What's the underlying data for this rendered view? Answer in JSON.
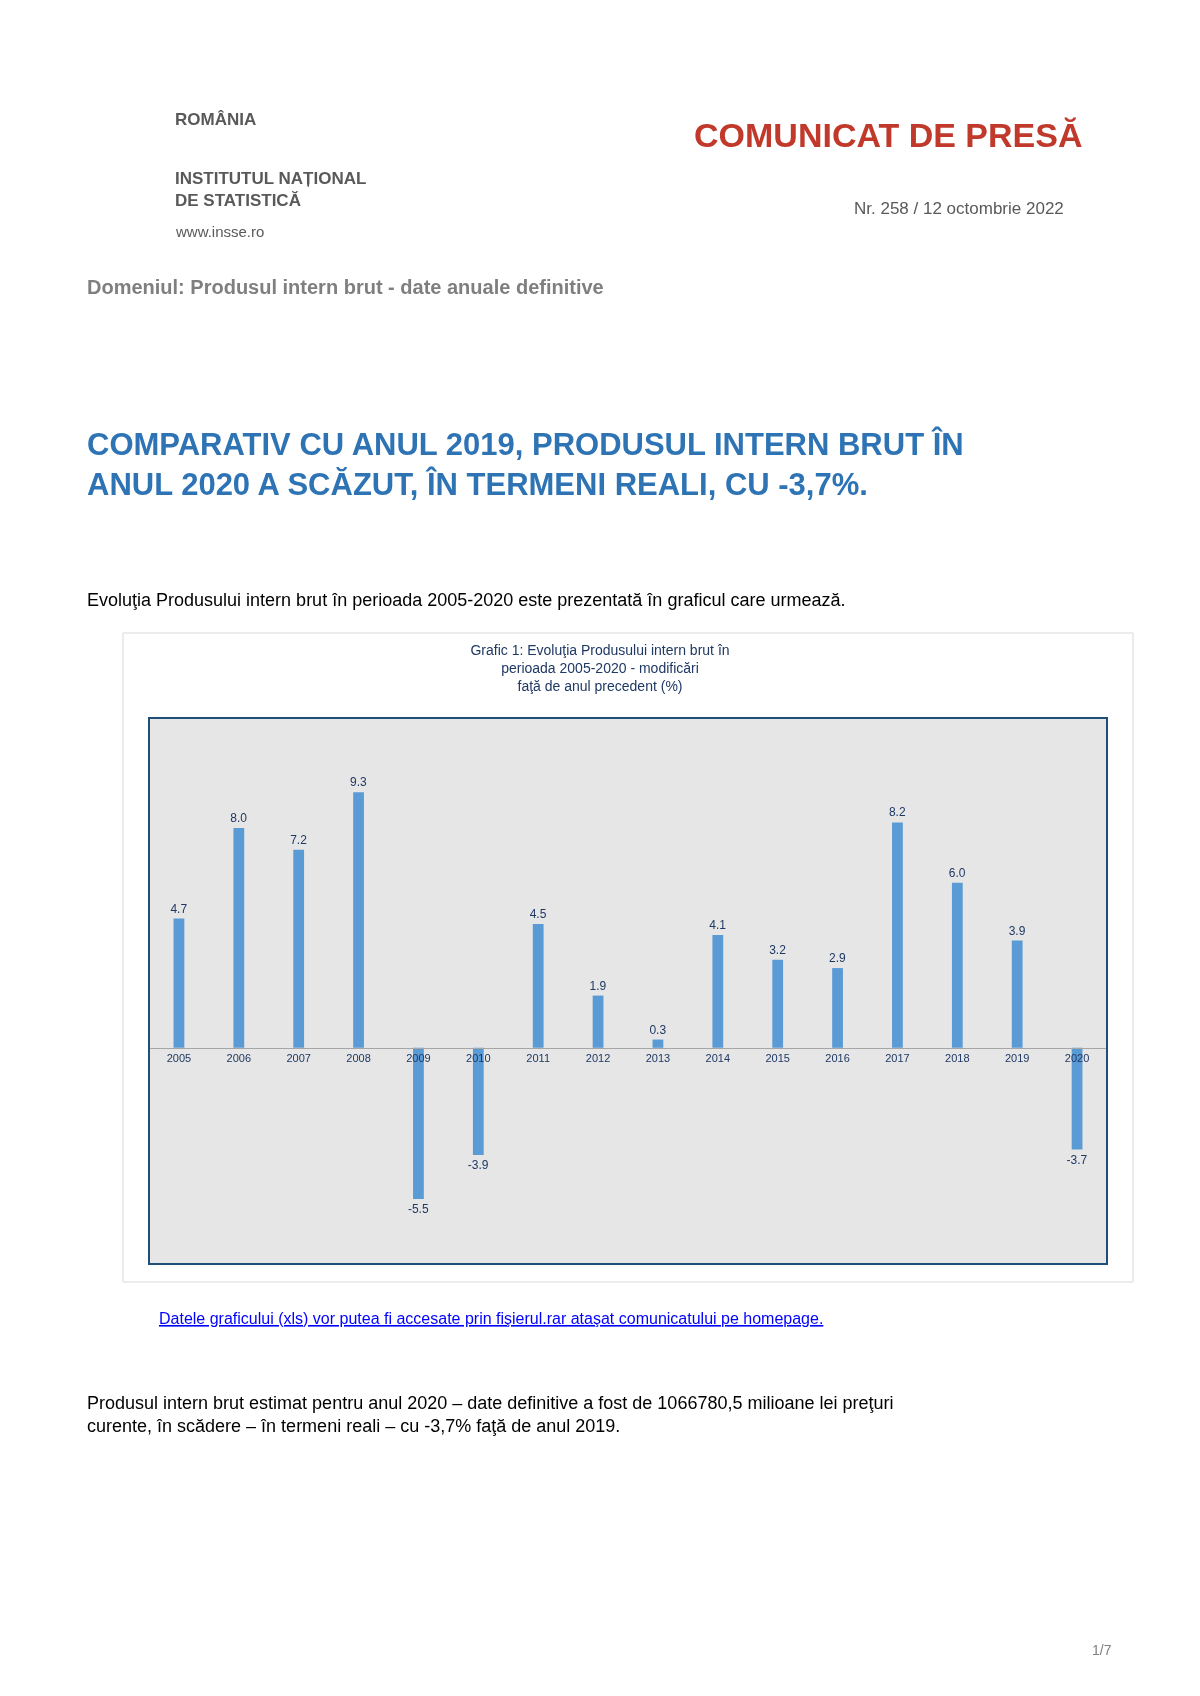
{
  "chart_data": {
    "type": "bar",
    "title": "Grafic 1: Evoluţia Produsului intern brut în\nperioada 2005-2020 - modificări\nfaţă de anul precedent (%)",
    "categories": [
      "2005",
      "2006",
      "2007",
      "2008",
      "2009",
      "2010",
      "2011",
      "2012",
      "2013",
      "2014",
      "2015",
      "2016",
      "2017",
      "2018",
      "2019",
      "2020"
    ],
    "values": [
      4.7,
      8.0,
      7.2,
      9.3,
      -5.5,
      -3.9,
      4.5,
      1.9,
      0.3,
      4.1,
      3.2,
      2.9,
      8.2,
      6.0,
      3.9,
      -3.7
    ],
    "value_labels": [
      "4.7",
      "8.0",
      "7.2",
      "9.3",
      "-5.5",
      "-3.9",
      "4.5",
      "1.9",
      "0.3",
      "4.1",
      "3.2",
      "2.9",
      "8.2",
      "6.0",
      "3.9",
      "-3.7"
    ],
    "color": "#5b9bd5",
    "grid": false,
    "legend": false,
    "tick_labels": "x",
    "annotations": [
      "ROMÂNIA",
      "INSTITUTUL NAȚIONAL\nDE STATISTICĂ",
      "www.insse.ro",
      "COMUNICAT DE PRESĂ",
      "Nr. 258 / 12 octombrie 2022",
      "Domeniul: Produsul intern brut - date anuale definitive",
      "COMPARATIV CU ANUL 2019, PRODUSUL INTERN BRUT ÎN\nANUL 2020 A SCĂZUT, ÎN TERMENI REALI, CU -3,7%.",
      "Evoluţia Produsului intern brut în perioada 2005-2020 este prezentată în graficul care urmează.",
      "Datele graficului (xls) vor putea fi accesate prin fişierul.rar ataşat comunicatului pe homepage.",
      "Produsul intern brut estimat pentru anul 2020 – date definitive a fost de 1066780,5 milioane lei preţuri\ncurente, în scădere – în termeni reali – cu -3,7% faţă de anul 2019.",
      "1/7"
    ]
  }
}
